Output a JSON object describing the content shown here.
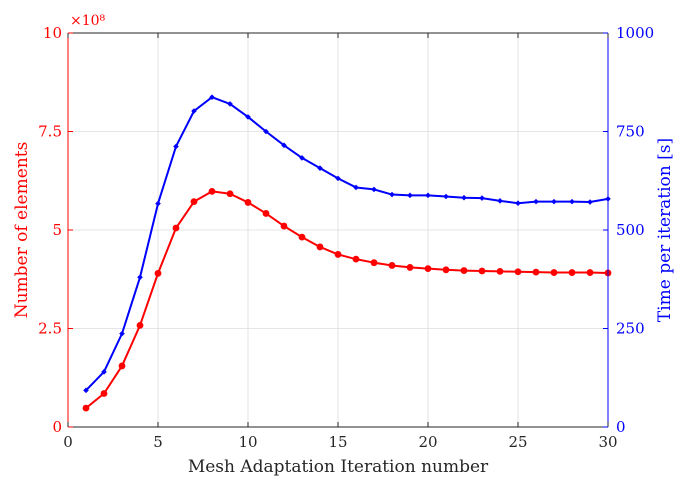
{
  "chart_data": {
    "type": "line",
    "xlabel": "Mesh Adaptation Iteration number",
    "ylabel_left": "Number of elements",
    "ylabel_right": "Time per iteration [s]",
    "left_multiplier": "×10⁸",
    "xlim": [
      0,
      30
    ],
    "ylim_left": [
      0,
      10
    ],
    "ylim_right": [
      0,
      1000
    ],
    "x_ticks": [
      "0",
      "5",
      "10",
      "15",
      "20",
      "25",
      "30"
    ],
    "x_tick_values": [
      0,
      5,
      10,
      15,
      20,
      25,
      30
    ],
    "left_ticks": [
      "0",
      "2.5",
      "5",
      "7.5",
      "10"
    ],
    "left_tick_values": [
      0,
      2.5,
      5,
      7.5,
      10
    ],
    "right_ticks": [
      "0",
      "250",
      "500",
      "750",
      "1000"
    ],
    "right_tick_values": [
      0,
      250,
      500,
      750,
      1000
    ],
    "grid": true,
    "colors": {
      "left": "#ff0000",
      "right": "#0000ff",
      "grid": "#dcdcdc",
      "axis": "#262626"
    },
    "series": [
      {
        "axis": "left",
        "color": "#ff0000",
        "marker": "circle",
        "x": [
          1,
          2,
          3,
          4,
          5,
          6,
          7,
          8,
          9,
          10,
          11,
          12,
          13,
          14,
          15,
          16,
          17,
          18,
          19,
          20,
          21,
          22,
          23,
          24,
          25,
          26,
          27,
          28,
          29,
          30
        ],
        "values": [
          0.48,
          0.85,
          1.55,
          2.58,
          3.9,
          5.05,
          5.72,
          5.98,
          5.92,
          5.7,
          5.42,
          5.1,
          4.82,
          4.57,
          4.38,
          4.26,
          4.17,
          4.1,
          4.05,
          4.02,
          3.99,
          3.97,
          3.96,
          3.95,
          3.94,
          3.93,
          3.92,
          3.92,
          3.92,
          3.91
        ]
      },
      {
        "axis": "right",
        "color": "#0000ff",
        "marker": "diamond",
        "x": [
          1,
          2,
          3,
          4,
          5,
          6,
          7,
          8,
          9,
          10,
          11,
          12,
          13,
          14,
          15,
          16,
          17,
          18,
          19,
          20,
          21,
          22,
          23,
          24,
          25,
          26,
          27,
          28,
          29,
          30
        ],
        "values": [
          93,
          140,
          237,
          380,
          567,
          712,
          802,
          837,
          820,
          787,
          750,
          715,
          683,
          657,
          631,
          608,
          603,
          590,
          588,
          588,
          585,
          582,
          581,
          574,
          568,
          572,
          572,
          572,
          571,
          579
        ]
      }
    ]
  }
}
